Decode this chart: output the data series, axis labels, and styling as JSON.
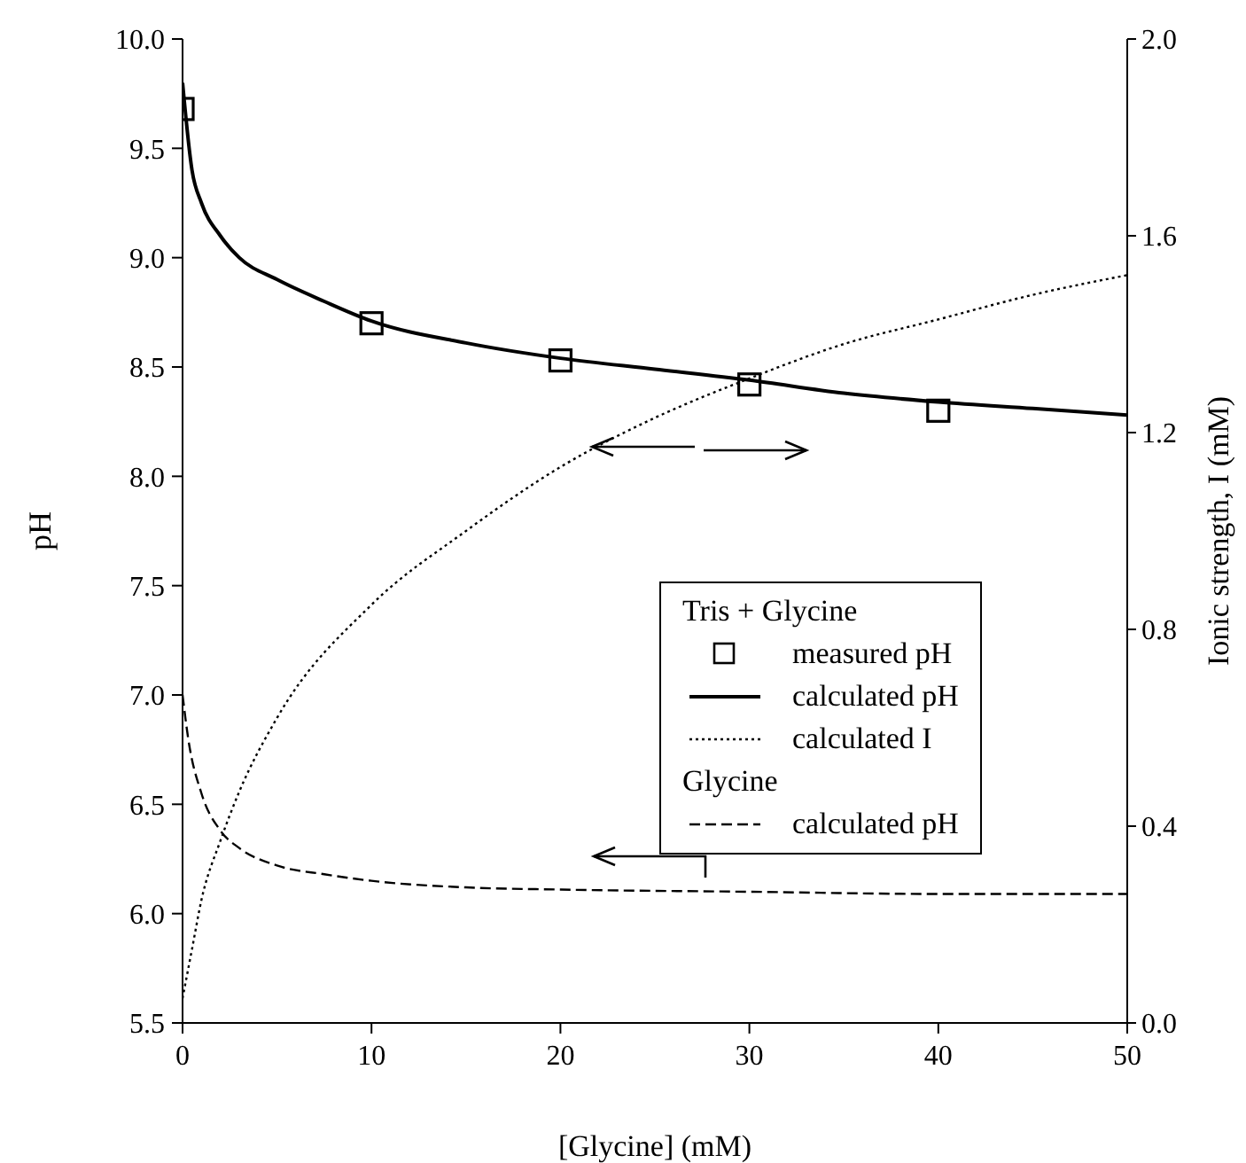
{
  "chart_data": {
    "type": "line",
    "xlabel": "[Glycine]  (mM)",
    "ylabel": "pH",
    "y2label": "Ionic strength, I (mM)",
    "xlim": [
      0,
      50
    ],
    "xticks": [
      0,
      10,
      20,
      30,
      40,
      50
    ],
    "ylim": [
      5.5,
      10.0
    ],
    "yticks": [
      {
        "value": 5.5,
        "label": "5.5"
      },
      {
        "value": 6.0,
        "label": "6.0"
      },
      {
        "value": 6.5,
        "label": "6.5"
      },
      {
        "value": 7.0,
        "label": "7.0"
      },
      {
        "value": 7.5,
        "label": "7.5"
      },
      {
        "value": 8.0,
        "label": "8.0"
      },
      {
        "value": 8.5,
        "label": "8.5"
      },
      {
        "value": 9.0,
        "label": "9.0"
      },
      {
        "value": 9.5,
        "label": "9.5"
      },
      {
        "value": 10.0,
        "label": "10.0"
      }
    ],
    "y2lim": [
      0.0,
      2.0
    ],
    "y2ticks": [
      {
        "value": 0,
        "label": "0.0"
      },
      {
        "value": 0.4,
        "label": "0.4"
      },
      {
        "value": 0.8,
        "label": "0.8"
      },
      {
        "value": 1.2,
        "label": "1.2"
      },
      {
        "value": 1.6,
        "label": "1.6"
      },
      {
        "value": 2.0,
        "label": "2.0"
      }
    ],
    "annotations": [
      "Tris + Glycine",
      "Glycine"
    ],
    "legend": "right",
    "grid": false,
    "series": [
      {
        "name": "measured pH",
        "type": "scatter",
        "marker": "square",
        "color": "#000000",
        "x": [
          0,
          10,
          20,
          30,
          40
        ],
        "values": [
          9.68,
          8.7,
          8.53,
          8.42,
          8.3
        ]
      },
      {
        "name": "calculated pH",
        "type": "line",
        "line_style": "solid",
        "color": "#000000",
        "x": [
          0,
          0.5,
          1,
          2,
          3,
          5,
          7.5,
          10,
          15,
          20,
          25,
          30,
          35,
          40,
          45,
          50
        ],
        "values": [
          9.8,
          9.4,
          9.25,
          9.1,
          9.0,
          8.9,
          8.8,
          8.71,
          8.61,
          8.54,
          8.49,
          8.44,
          8.38,
          8.34,
          8.31,
          8.28
        ]
      },
      {
        "name": "calculated I",
        "type": "line",
        "axis": "y2",
        "line_style": "dotted",
        "color": "#000000",
        "x": [
          0,
          0.5,
          1,
          2,
          3,
          5,
          10,
          15,
          20,
          25,
          30,
          35,
          40,
          45,
          50
        ],
        "values": [
          0.05,
          0.15,
          0.25,
          0.37,
          0.47,
          0.62,
          0.85,
          1.0,
          1.13,
          1.23,
          1.31,
          1.38,
          1.43,
          1.48,
          1.52
        ]
      },
      {
        "name": "calculated pH",
        "type": "line",
        "line_style": "dashed",
        "color": "#000000",
        "x": [
          0,
          0.3,
          1,
          2,
          3,
          5,
          7.5,
          10,
          15,
          20,
          30,
          40,
          50
        ],
        "values": [
          7.0,
          6.8,
          6.55,
          6.38,
          6.3,
          6.22,
          6.18,
          6.15,
          6.12,
          6.11,
          6.1,
          6.09,
          6.09
        ]
      }
    ]
  }
}
